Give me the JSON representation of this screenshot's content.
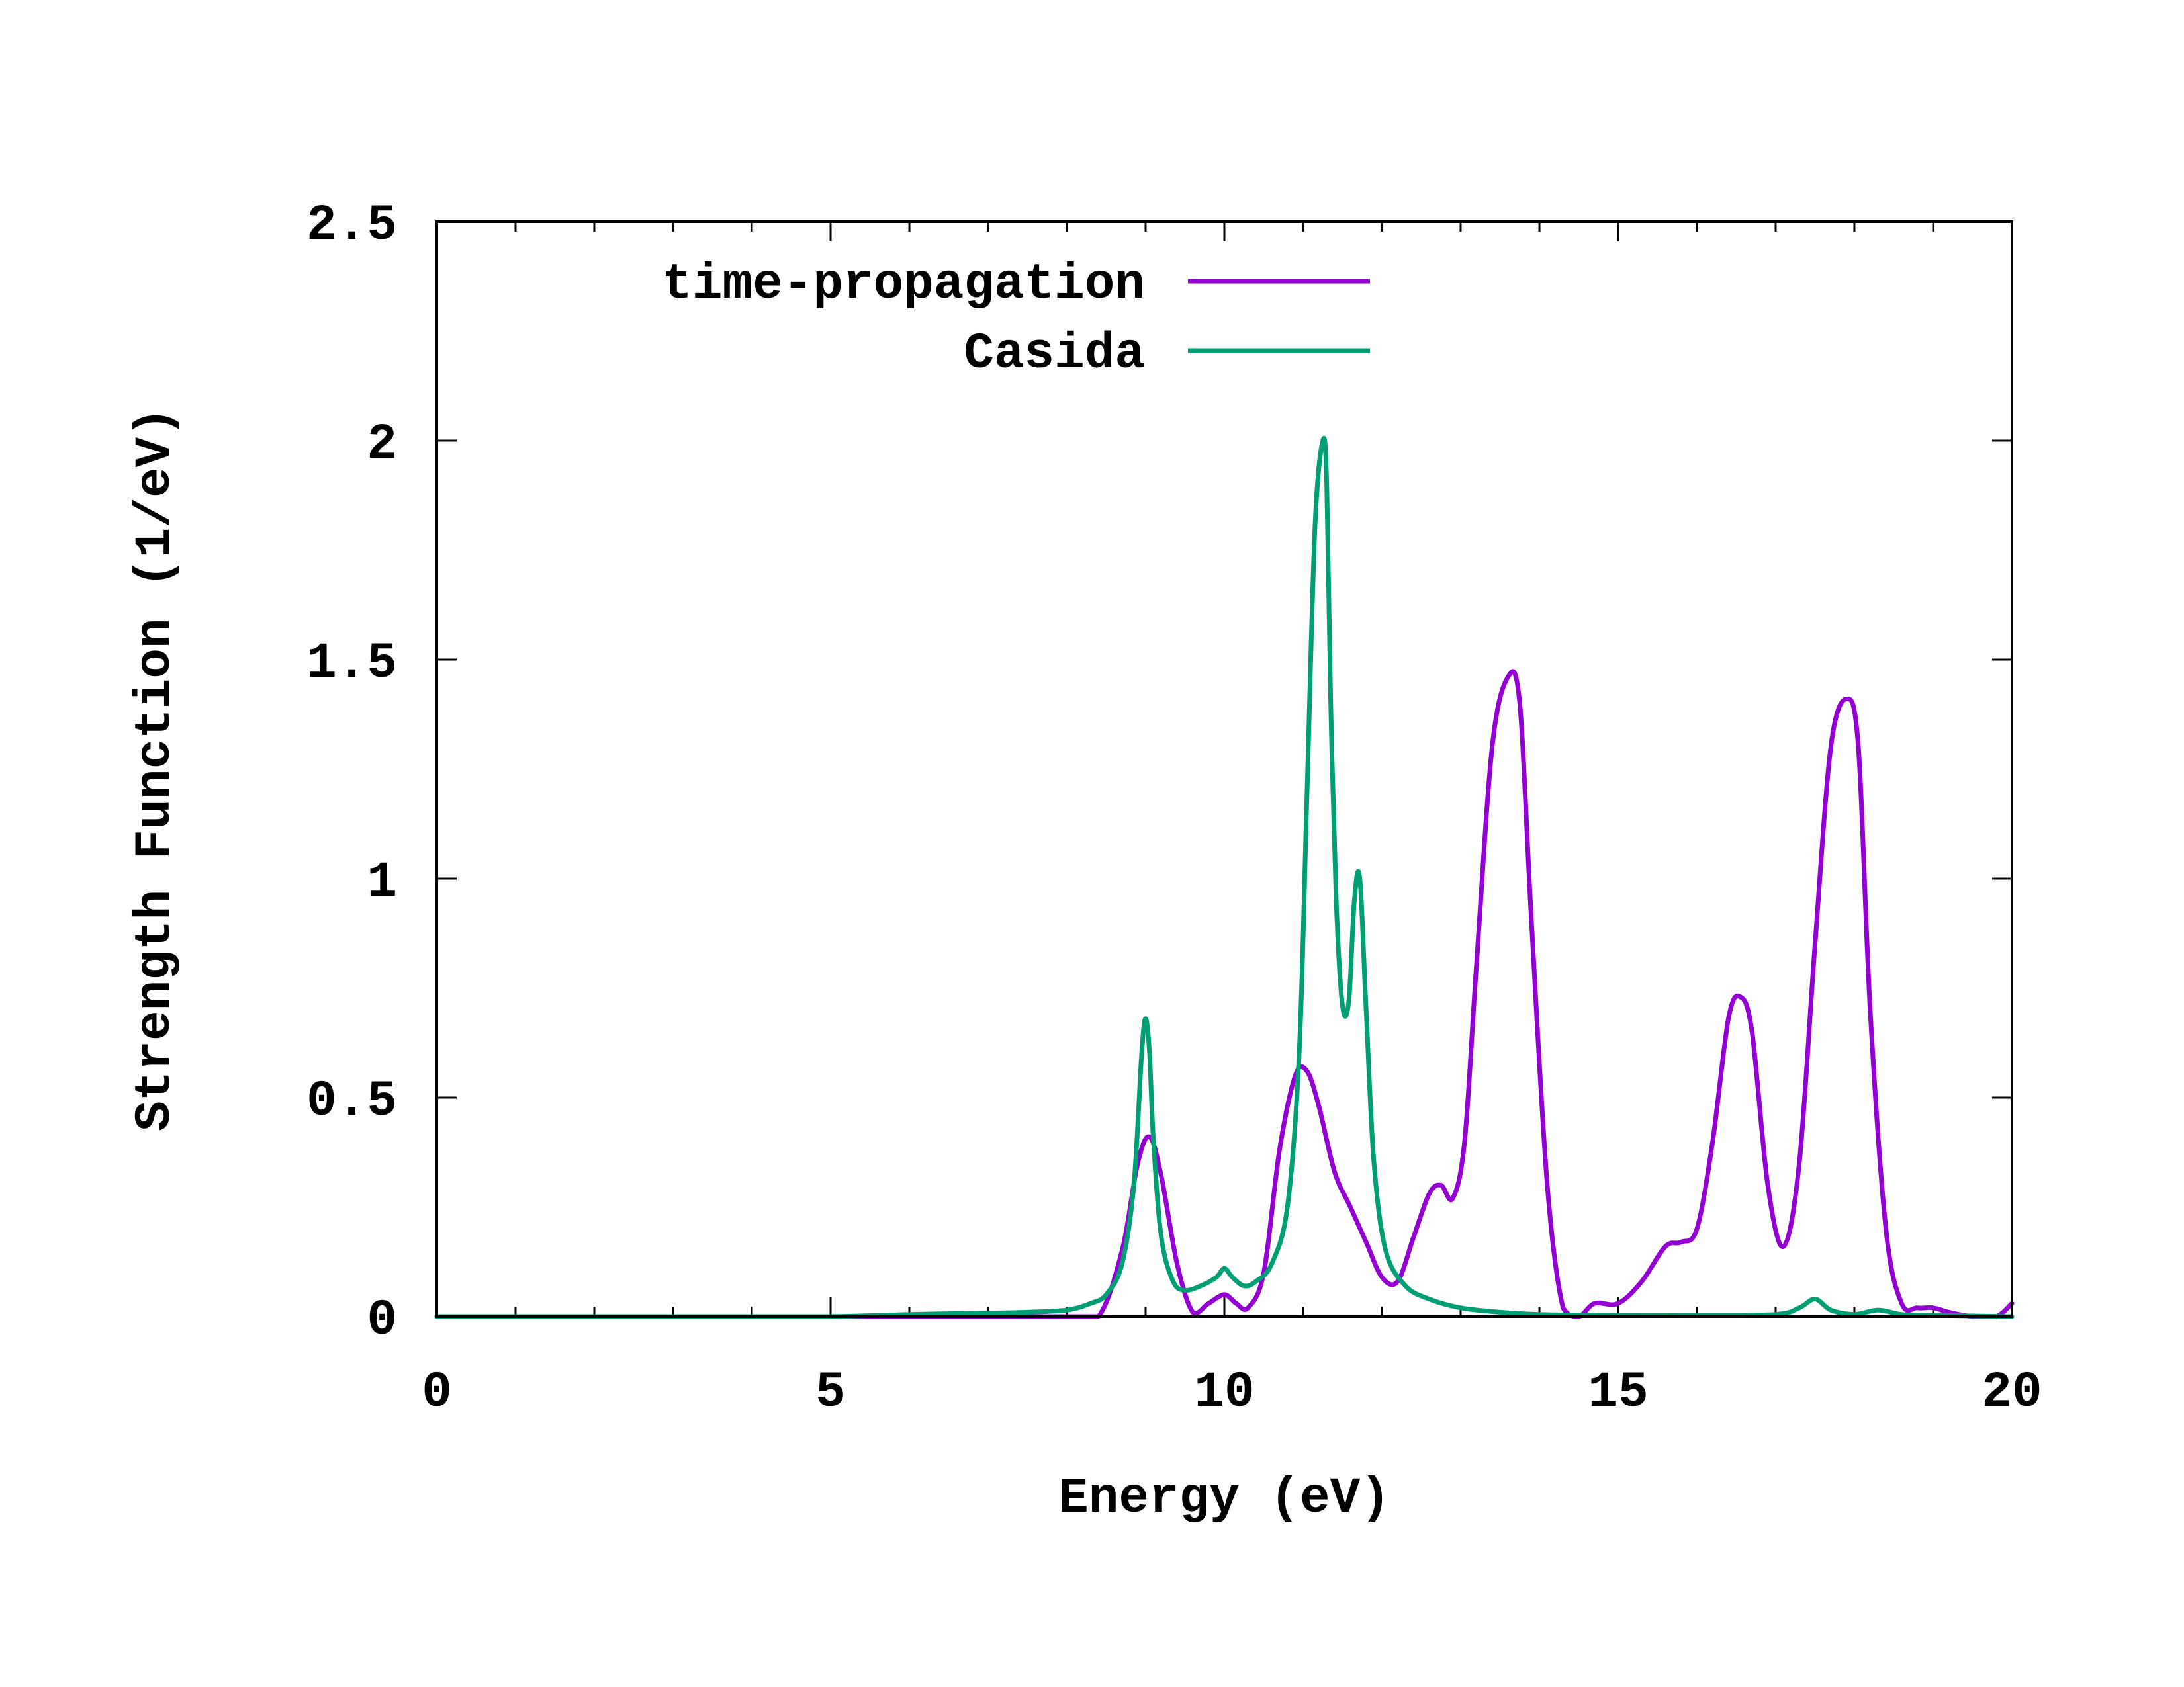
{
  "chart_data": {
    "type": "line",
    "title": "",
    "xlabel": "Energy (eV)",
    "ylabel": "Strength Function (1/eV)",
    "xlim": [
      0,
      20
    ],
    "ylim": [
      0,
      2.5
    ],
    "xticks": [
      "0",
      "5",
      "10",
      "15",
      "20"
    ],
    "yticks": [
      "0",
      "0.5",
      "1",
      "1.5",
      "2",
      "2.5"
    ],
    "grid": false,
    "legend_position": "top-left",
    "series": [
      {
        "name": "time-propagation",
        "color": "#9400d3",
        "x": [
          0,
          2,
          4,
          5,
          6,
          7,
          8,
          8.4,
          8.7,
          8.9,
          9.05,
          9.2,
          9.4,
          9.6,
          9.8,
          10.0,
          10.15,
          10.3,
          10.5,
          10.7,
          10.9,
          11.05,
          11.2,
          11.4,
          11.6,
          11.8,
          12.0,
          12.2,
          12.4,
          12.6,
          12.75,
          12.9,
          13.05,
          13.2,
          13.4,
          13.6,
          13.75,
          13.9,
          14.1,
          14.3,
          14.5,
          14.7,
          15.0,
          15.3,
          15.6,
          15.8,
          16.0,
          16.2,
          16.4,
          16.55,
          16.7,
          16.9,
          17.1,
          17.3,
          17.5,
          17.7,
          17.9,
          18.05,
          18.2,
          18.4,
          18.6,
          18.8,
          19.0,
          19.2,
          19.5,
          19.8,
          20.0
        ],
        "y": [
          0,
          0,
          0,
          0,
          0,
          0,
          0,
          0,
          0.15,
          0.35,
          0.41,
          0.32,
          0.12,
          0.01,
          0.03,
          0.05,
          0.03,
          0.02,
          0.1,
          0.38,
          0.55,
          0.56,
          0.48,
          0.33,
          0.25,
          0.17,
          0.09,
          0.08,
          0.18,
          0.28,
          0.3,
          0.27,
          0.4,
          0.8,
          1.3,
          1.46,
          1.4,
          0.9,
          0.3,
          0.02,
          0,
          0.03,
          0.03,
          0.08,
          0.16,
          0.17,
          0.2,
          0.4,
          0.68,
          0.73,
          0.65,
          0.3,
          0.16,
          0.35,
          0.85,
          1.3,
          1.41,
          1.3,
          0.7,
          0.2,
          0.03,
          0.02,
          0.02,
          0.01,
          0,
          0,
          0.03
        ]
      },
      {
        "name": "Casida",
        "color": "#009e73",
        "x": [
          0,
          2,
          4,
          5,
          6,
          7,
          7.5,
          8.0,
          8.3,
          8.5,
          8.7,
          8.85,
          8.95,
          9.0,
          9.05,
          9.1,
          9.2,
          9.35,
          9.5,
          9.7,
          9.9,
          10.0,
          10.1,
          10.25,
          10.4,
          10.6,
          10.8,
          10.95,
          11.05,
          11.15,
          11.25,
          11.3,
          11.35,
          11.42,
          11.5,
          11.58,
          11.65,
          11.72,
          11.8,
          11.9,
          12.05,
          12.3,
          12.6,
          13.0,
          13.5,
          14.0,
          15.0,
          16.0,
          17.0,
          17.3,
          17.5,
          17.7,
          18.0,
          18.3,
          18.6,
          19.0,
          20.0
        ],
        "y": [
          0,
          0,
          0,
          0,
          0.005,
          0.008,
          0.01,
          0.015,
          0.03,
          0.05,
          0.12,
          0.3,
          0.6,
          0.68,
          0.6,
          0.4,
          0.18,
          0.08,
          0.06,
          0.07,
          0.09,
          0.11,
          0.09,
          0.07,
          0.08,
          0.12,
          0.25,
          0.6,
          1.2,
          1.8,
          2.0,
          1.9,
          1.4,
          0.95,
          0.71,
          0.72,
          0.95,
          1.0,
          0.7,
          0.35,
          0.15,
          0.07,
          0.04,
          0.02,
          0.01,
          0.005,
          0.003,
          0.003,
          0.005,
          0.02,
          0.04,
          0.015,
          0.005,
          0.015,
          0.005,
          0.003,
          0
        ]
      }
    ]
  }
}
